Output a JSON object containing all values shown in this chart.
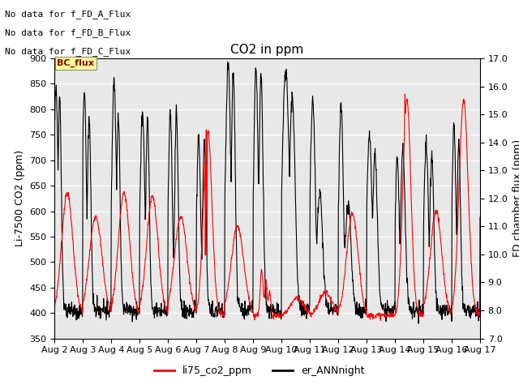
{
  "title": "CO2 in ppm",
  "ylabel_left": "Li-7500 CO2 (ppm)",
  "ylabel_right": "FD chamber flux (ppm)",
  "ylim_left": [
    350,
    900
  ],
  "ylim_right": [
    7.0,
    17.0
  ],
  "yticks_left": [
    350,
    400,
    450,
    500,
    550,
    600,
    650,
    700,
    750,
    800,
    850,
    900
  ],
  "yticks_right": [
    7.0,
    8.0,
    9.0,
    10.0,
    11.0,
    12.0,
    13.0,
    14.0,
    15.0,
    16.0,
    17.0
  ],
  "xtick_labels": [
    "Aug 2",
    "Aug 3",
    "Aug 4",
    "Aug 5",
    "Aug 6",
    "Aug 7",
    "Aug 8",
    "Aug 9",
    "Aug 10",
    "Aug 11",
    "Aug 12",
    "Aug 13",
    "Aug 14",
    "Aug 15",
    "Aug 16",
    "Aug 17"
  ],
  "legend_labels": [
    "li75_co2_ppm",
    "er_ANNnight"
  ],
  "legend_colors": [
    "red",
    "black"
  ],
  "text_annotations": [
    "No data for f_FD_A_Flux",
    "No data for f_FD_B_Flux",
    "No data for f_FD_C_Flux"
  ],
  "bc_flux_label": "BC_flux",
  "background_color": "#e8e8e8",
  "line_color_red": "#ff0000",
  "line_color_black": "#000000",
  "title_fontsize": 11,
  "label_fontsize": 9,
  "tick_fontsize": 8,
  "ann_fontsize": 8
}
